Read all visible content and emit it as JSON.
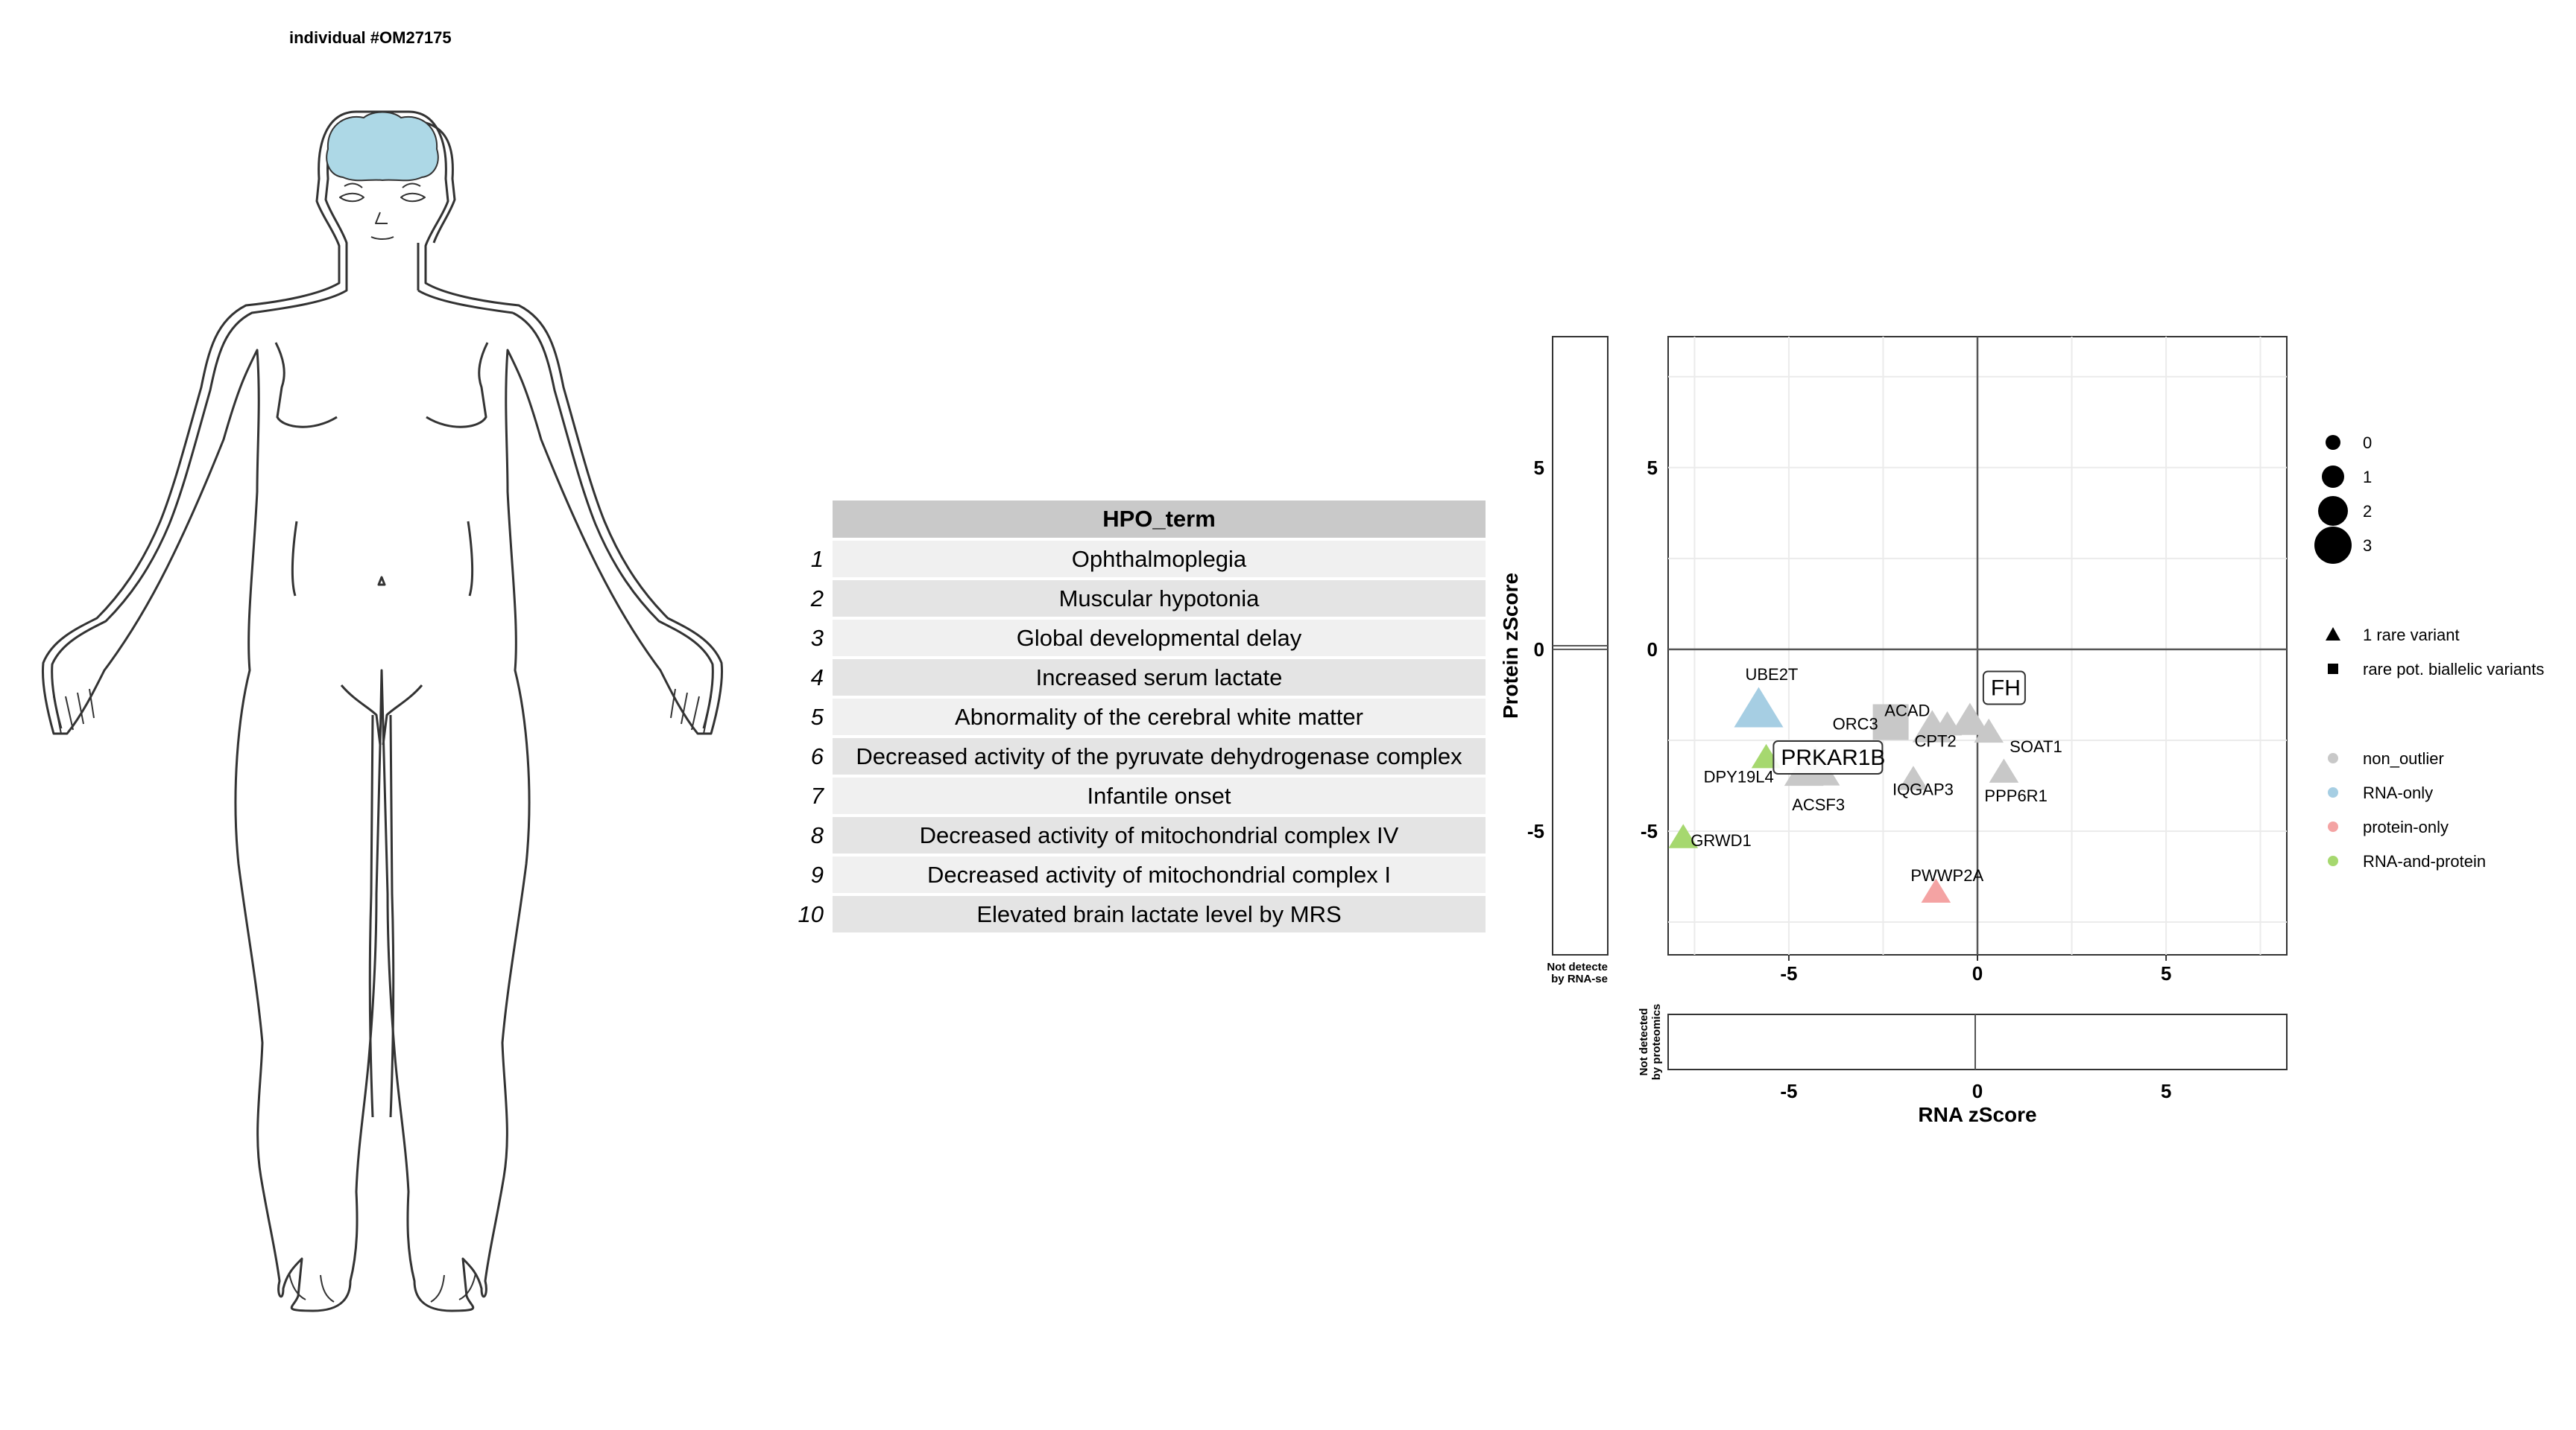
{
  "title": "individual #OM27175",
  "body_diagram": {
    "highlight_color": "#add8e6"
  },
  "hpo_table": {
    "header": "HPO_term",
    "rows": [
      {
        "index": "1",
        "term": "Ophthalmoplegia"
      },
      {
        "index": "2",
        "term": "Muscular hypotonia"
      },
      {
        "index": "3",
        "term": "Global developmental delay"
      },
      {
        "index": "4",
        "term": "Increased serum lactate"
      },
      {
        "index": "5",
        "term": "Abnormality of the cerebral white matter"
      },
      {
        "index": "6",
        "term": "Decreased activity of the pyruvate dehydrogenase complex"
      },
      {
        "index": "7",
        "term": "Infantile onset"
      },
      {
        "index": "8",
        "term": "Decreased activity of mitochondrial complex IV"
      },
      {
        "index": "9",
        "term": "Decreased activity of mitochondrial complex I"
      },
      {
        "index": "10",
        "term": "Elevated brain lactate level by MRS"
      }
    ]
  },
  "chart_data": {
    "type": "scatter",
    "xlabel": "RNA zScore",
    "ylabel": "Protein zScore",
    "xlim": [
      -8.2,
      8.2
    ],
    "ylim": [
      -8.4,
      8.6
    ],
    "xticks": [
      -5,
      0,
      5
    ],
    "yticks": [
      5,
      0,
      -5
    ],
    "grid": true,
    "side_panel_labels": {
      "rna": [
        "Not detecte",
        "by RNA-se"
      ],
      "protein": [
        "Not detected",
        "by proteomics"
      ]
    },
    "colors": {
      "non_outlier": "#c8c8c8",
      "RNA-only": "#a6cee3",
      "protein-only": "#f4a3a3",
      "RNA-and-protein": "#a6d86f"
    },
    "points": [
      {
        "gene": "UBE2T",
        "x": -5.8,
        "y": -1.7,
        "shape": "triangle",
        "size": 3,
        "class": "RNA-only",
        "boxed": false
      },
      {
        "gene": "ORC3",
        "x": -2.3,
        "y": -2.0,
        "shape": "square",
        "size": 2,
        "class": "non_outlier",
        "boxed": false
      },
      {
        "gene": "ACAD",
        "x": -1.2,
        "y": -2.2,
        "shape": "triangle",
        "size": 2,
        "class": "non_outlier",
        "boxed": false
      },
      {
        "gene": "FH",
        "x": -0.2,
        "y": -2.0,
        "shape": "triangle",
        "size": 2,
        "class": "non_outlier",
        "boxed": true
      },
      {
        "gene": "CPT2",
        "x": -0.8,
        "y": -2.1,
        "shape": "triangle",
        "size": 1,
        "class": "non_outlier",
        "boxed": false
      },
      {
        "gene": "SOAT1",
        "x": 0.3,
        "y": -2.3,
        "shape": "triangle",
        "size": 1,
        "class": "non_outlier",
        "boxed": false
      },
      {
        "gene": "PRKAR1B",
        "x": -4.3,
        "y": -3.3,
        "shape": "triangle",
        "size": 3,
        "class": "non_outlier",
        "boxed": true
      },
      {
        "gene": "ACSF3",
        "x": -4.6,
        "y": -3.4,
        "shape": "triangle",
        "size": 2,
        "class": "non_outlier",
        "boxed": false
      },
      {
        "gene": "DPY19L4",
        "x": -5.6,
        "y": -3.0,
        "shape": "triangle",
        "size": 1,
        "class": "RNA-and-protein",
        "boxed": false
      },
      {
        "gene": "IQGAP3",
        "x": -1.7,
        "y": -3.6,
        "shape": "triangle",
        "size": 1,
        "class": "non_outlier",
        "boxed": false
      },
      {
        "gene": "PPP6R1",
        "x": 0.7,
        "y": -3.4,
        "shape": "triangle",
        "size": 1,
        "class": "non_outlier",
        "boxed": false
      },
      {
        "gene": "GRWD1",
        "x": -7.8,
        "y": -5.2,
        "shape": "triangle",
        "size": 1,
        "class": "RNA-and-protein",
        "boxed": false
      },
      {
        "gene": "PWWP2A",
        "x": -1.1,
        "y": -6.7,
        "shape": "triangle",
        "size": 1,
        "class": "protein-only",
        "boxed": false
      }
    ],
    "legend": {
      "size": [
        "0",
        "1",
        "2",
        "3"
      ],
      "shape": [
        {
          "label": "1 rare variant",
          "shape": "triangle"
        },
        {
          "label": "rare pot. biallelic variants",
          "shape": "square"
        }
      ],
      "class": [
        {
          "label": "non_outlier",
          "key": "non_outlier"
        },
        {
          "label": "RNA-only",
          "key": "RNA-only"
        },
        {
          "label": "protein-only",
          "key": "protein-only"
        },
        {
          "label": "RNA-and-protein",
          "key": "RNA-and-protein"
        }
      ]
    }
  }
}
